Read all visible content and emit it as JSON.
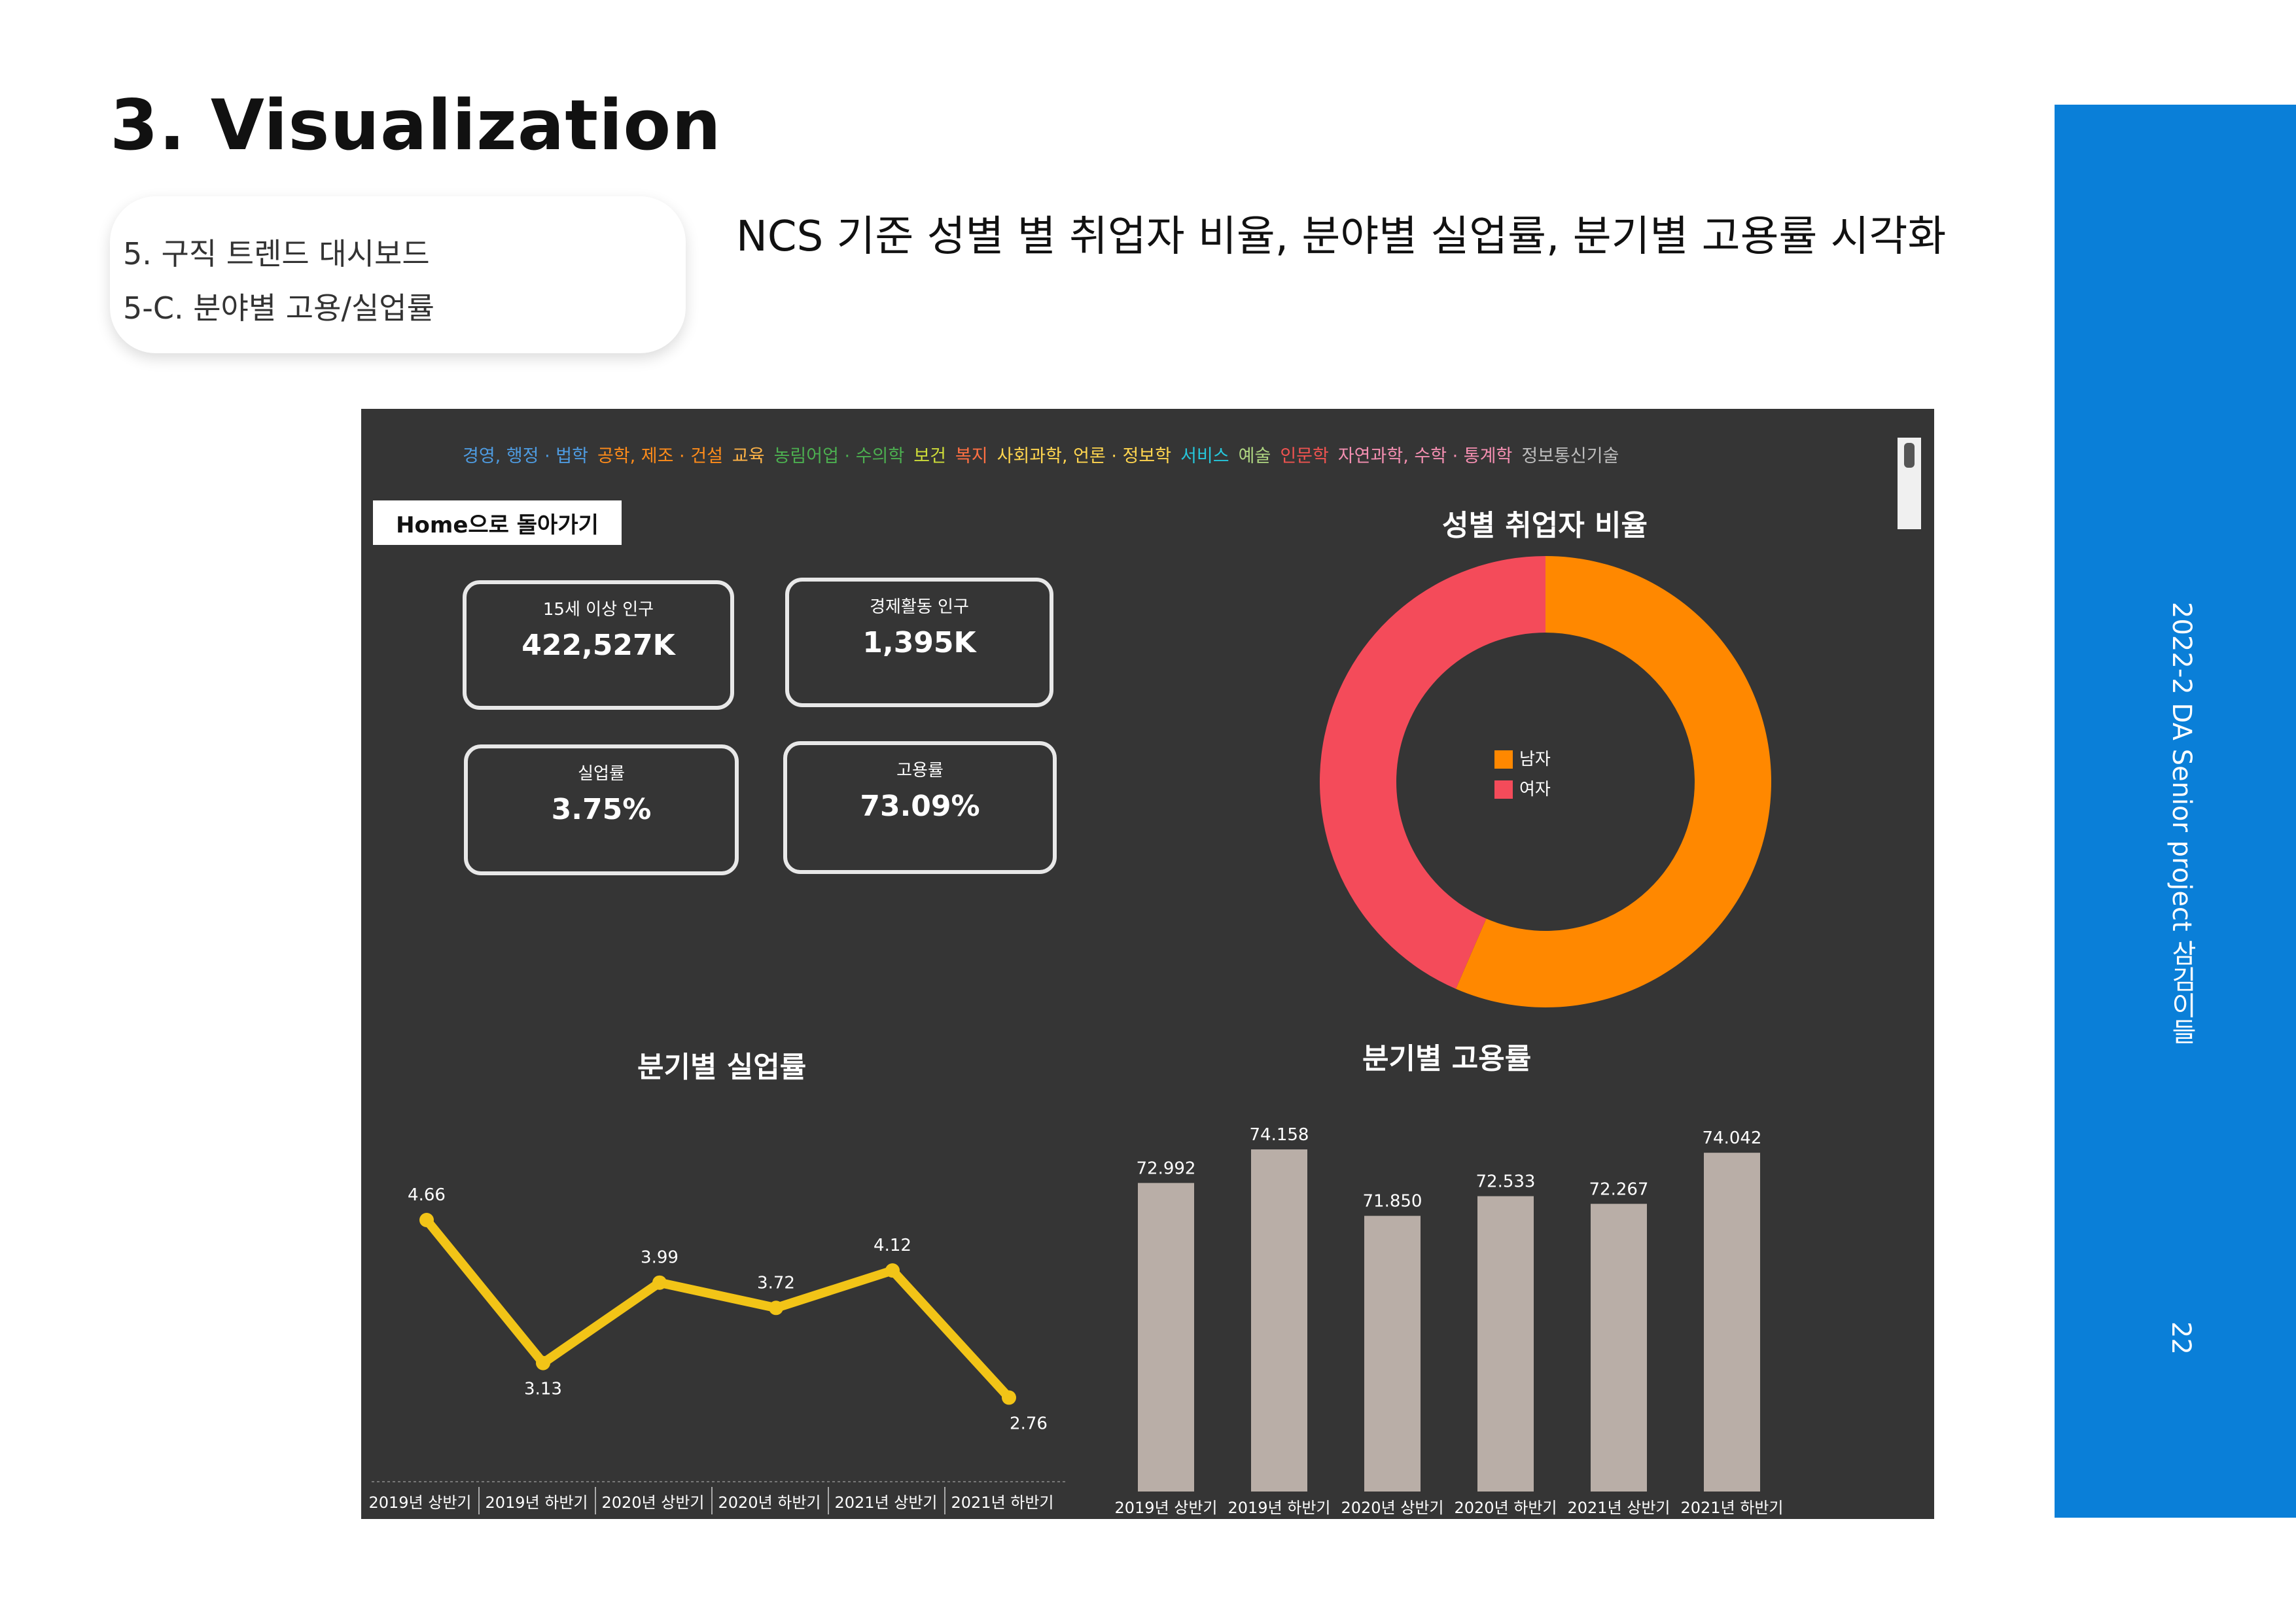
{
  "page": {
    "title": "3. Visualization",
    "breadcrumb": [
      "5. 구직 트렌드 대시보드",
      "5-C. 분야별 고용/실업률"
    ],
    "subtitle": "NCS 기준 성별 별 취업자 비율, 분야별 실업률, 분기별 고용률 시각화",
    "sidebar_text": "2022-2 DA Senior project 삼김이들",
    "page_number": "22",
    "accent": "#0a7fd8"
  },
  "dashboard": {
    "background": "#353535",
    "categories": [
      {
        "label": "경영, 행정 · 법학",
        "color": "#4e9be0"
      },
      {
        "label": "공학, 제조 · 건설",
        "color": "#ff8c1a"
      },
      {
        "label": "교육",
        "color": "#ffb347"
      },
      {
        "label": "농림어업 · 수의학",
        "color": "#4caf50"
      },
      {
        "label": "보건",
        "color": "#cddc39"
      },
      {
        "label": "복지",
        "color": "#ff7043"
      },
      {
        "label": "사회과학, 언론 · 정보학",
        "color": "#ffd54f"
      },
      {
        "label": "서비스",
        "color": "#26c6da"
      },
      {
        "label": "예술",
        "color": "#aed581"
      },
      {
        "label": "인문학",
        "color": "#ef5350"
      },
      {
        "label": "자연과학, 수학 · 통계학",
        "color": "#f48fb1"
      },
      {
        "label": "정보통신기술",
        "color": "#bdbdbd"
      }
    ],
    "home_button": "Home으로 돌아가기",
    "kpis": [
      {
        "label": "15세 이상 인구",
        "value": "422,527K"
      },
      {
        "label": "경제활동 인구",
        "value": "1,395K"
      },
      {
        "label": "실업률",
        "value": "3.75%"
      },
      {
        "label": "고용률",
        "value": "73.09%"
      }
    ],
    "donut_title": "성별 취업자 비율",
    "line_title": "분기별 실업률",
    "bar_title": "분기별 고용률"
  },
  "chart_data": [
    {
      "type": "pie",
      "title": "성별 취업자 비율",
      "categories": [
        "남자",
        "여자"
      ],
      "values": [
        56.5,
        43.5
      ],
      "colors": [
        "#ff8800",
        "#f44b5a"
      ]
    },
    {
      "type": "line",
      "title": "분기별 실업률",
      "categories": [
        "2019년 상반기",
        "2019년 하반기",
        "2020년 상반기",
        "2020년 하반기",
        "2021년 상반기",
        "2021년 하반기"
      ],
      "values": [
        4.66,
        3.13,
        3.99,
        3.72,
        4.12,
        2.76
      ],
      "labels": [
        "4.66",
        "3.13",
        "3.99",
        "3.72",
        "4.12",
        "2.76"
      ],
      "color": "#f2c417",
      "ylim": [
        2.0,
        5.5
      ]
    },
    {
      "type": "bar",
      "title": "분기별 고용률",
      "categories": [
        "2019년 상반기",
        "2019년 하반기",
        "2020년 상반기",
        "2020년 하반기",
        "2021년 상반기",
        "2021년 하반기"
      ],
      "values": [
        72.992,
        74.158,
        71.85,
        72.533,
        72.267,
        74.042
      ],
      "labels": [
        "72.992",
        "74.158",
        "71.850",
        "72.533",
        "72.267",
        "74.042"
      ],
      "color": "#b9aea7",
      "ylim": [
        0,
        75
      ]
    }
  ]
}
